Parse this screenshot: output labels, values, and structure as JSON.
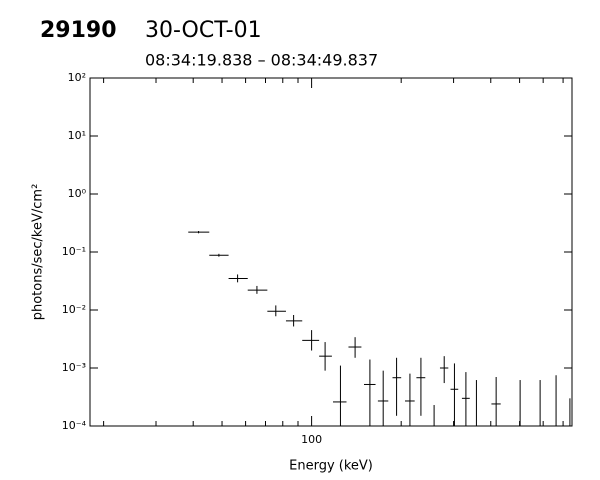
{
  "chart_data": {
    "type": "errorbar",
    "title": "29190",
    "subtitle": "30-OCT-01",
    "time_range": "08:34:19.838 – 08:34:49.837",
    "xlabel": "Energy (keV)",
    "ylabel": "photons/sec/keV/cm²",
    "xlog": true,
    "ylog": true,
    "xlim": [
      18,
      750
    ],
    "ylim": [
      0.0001,
      100
    ],
    "xticks": [
      100
    ],
    "x_minor_ticks": [
      20,
      30,
      40,
      50,
      60,
      70,
      80,
      90,
      200,
      300,
      400,
      500,
      600,
      700
    ],
    "yticks": [
      {
        "value": 100,
        "label": "10²"
      },
      {
        "value": 10,
        "label": "10¹"
      },
      {
        "value": 1,
        "label": "10⁰"
      },
      {
        "value": 0.1,
        "label": "10⁻¹"
      },
      {
        "value": 0.01,
        "label": "10⁻²"
      },
      {
        "value": 0.001,
        "label": "10⁻³"
      },
      {
        "value": 0.0001,
        "label": "10⁻⁴"
      }
    ],
    "color": "#000000",
    "x": [
      41.7,
      48.8,
      56.4,
      65.5,
      75.8,
      87,
      100,
      111,
      125,
      140,
      157,
      174,
      193,
      214,
      233,
      258,
      279,
      302,
      330,
      358,
      417,
      502,
      586,
      663,
      738
    ],
    "x_lo": [
      38.5,
      45.3,
      52.6,
      61,
      71,
      82,
      93,
      106,
      118,
      133,
      150,
      167,
      187,
      206,
      225,
      null,
      270,
      293,
      320,
      null,
      402,
      null,
      null,
      null,
      null
    ],
    "x_hi": [
      45.3,
      52.6,
      61,
      71,
      82,
      93,
      106,
      117,
      131,
      147,
      164,
      181,
      200,
      222,
      241,
      null,
      288,
      311,
      340,
      null,
      432,
      null,
      null,
      null,
      null
    ],
    "y": [
      0.22,
      0.088,
      0.035,
      0.022,
      0.0095,
      0.0065,
      0.003,
      0.0016,
      0.00026,
      0.0023,
      0.00052,
      0.00027,
      0.00068,
      0.00027,
      0.00068,
      null,
      0.001,
      0.00043,
      0.0003,
      null,
      0.00024,
      null,
      null,
      null,
      null
    ],
    "y_lo": [
      0.21,
      0.083,
      0.03,
      0.019,
      0.0078,
      0.0052,
      0.002,
      0.0009,
      0.0001,
      0.0015,
      0.0001,
      0.0001,
      0.00015,
      0.0001,
      0.00015,
      0.0001,
      0.00055,
      0.0001,
      0.0001,
      0.0001,
      0.0001,
      0.0001,
      0.0001,
      0.0001,
      0.0001
    ],
    "y_hi": [
      0.23,
      0.093,
      0.041,
      0.026,
      0.012,
      0.0082,
      0.0045,
      0.0028,
      0.0011,
      0.0034,
      0.0014,
      0.0009,
      0.0015,
      0.0008,
      0.0015,
      0.00023,
      0.0016,
      0.0012,
      0.00085,
      0.00062,
      0.0007,
      0.00062,
      0.00062,
      0.00075,
      0.0003
    ]
  }
}
